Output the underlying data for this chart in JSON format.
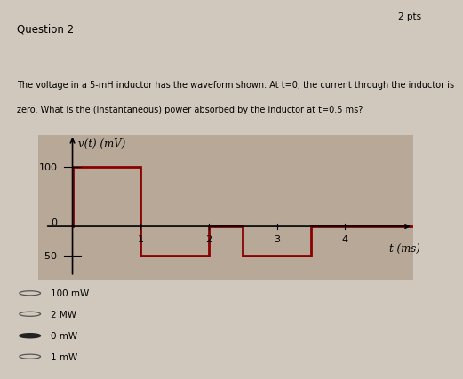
{
  "title": "Question 2",
  "pts_label": "2 pts",
  "question_line1": "The voltage in a 5-mH inductor has the waveform shown. At t=0, the current through the inductor is",
  "question_line2": "zero. What is the (instantaneous) power absorbed by the inductor at t=0.5 ms?",
  "ylabel": "v(t) (mV)",
  "xlabel": "t (ms)",
  "waveform_x": [
    0,
    0,
    1,
    1,
    2,
    2,
    2.5,
    2.5,
    3.5,
    3.5,
    5.0
  ],
  "waveform_y": [
    0,
    100,
    100,
    -50,
    -50,
    0,
    0,
    -50,
    -50,
    0,
    0
  ],
  "waveform_color": "#8B0000",
  "waveform_linewidth": 2.0,
  "xlim": [
    -0.5,
    5.0
  ],
  "ylim": [
    -90,
    155
  ],
  "xticks": [
    1,
    2,
    3,
    4
  ],
  "ytick_100": 100,
  "ytick_neg50": -50,
  "bg_color": "#c8bfb0",
  "chart_bg": "#b8a898",
  "choices": [
    "100 mW",
    "2 MW",
    "0 mW",
    "1 mW"
  ],
  "selected_choice": 2,
  "page_bg": "#d0c8bc"
}
